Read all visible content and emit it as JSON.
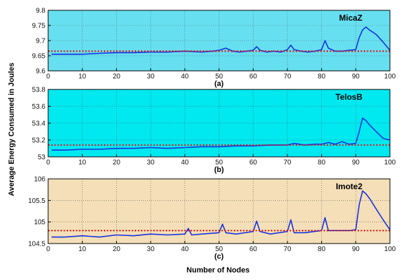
{
  "figure": {
    "ylabel": "Average Energy Consumed in Joules",
    "xlabel": "Number of Nodes"
  },
  "chart_data": [
    {
      "type": "line",
      "device": "MicaZ",
      "caption": "(a)",
      "background": "#66e0f0",
      "grid": true,
      "xlim": [
        0,
        100
      ],
      "ylim": [
        9.6,
        9.8
      ],
      "xticks": [
        0,
        10,
        20,
        30,
        40,
        50,
        60,
        70,
        80,
        90,
        100
      ],
      "yticks": [
        9.6,
        9.65,
        9.7,
        9.75,
        9.8
      ],
      "ytick_labels": [
        "9.6",
        "9.65",
        "9.7",
        "9.75",
        "9.8"
      ],
      "series": [
        {
          "color": "#1530e0",
          "style": "solid",
          "x": [
            1,
            5,
            10,
            15,
            20,
            25,
            30,
            35,
            40,
            45,
            48,
            50,
            52,
            54,
            56,
            58,
            60,
            61,
            62,
            64,
            66,
            68,
            70,
            71,
            72,
            74,
            76,
            78,
            80,
            81,
            82,
            84,
            86,
            88,
            90,
            91,
            92,
            93,
            94,
            96,
            98,
            100
          ],
          "y": [
            9.655,
            9.655,
            9.655,
            9.658,
            9.66,
            9.66,
            9.662,
            9.662,
            9.665,
            9.662,
            9.665,
            9.668,
            9.675,
            9.665,
            9.662,
            9.665,
            9.668,
            9.68,
            9.668,
            9.662,
            9.665,
            9.662,
            9.67,
            9.685,
            9.67,
            9.665,
            9.662,
            9.665,
            9.67,
            9.7,
            9.675,
            9.665,
            9.665,
            9.668,
            9.67,
            9.71,
            9.735,
            9.745,
            9.735,
            9.72,
            9.695,
            9.668
          ]
        },
        {
          "color": "#e01515",
          "style": "dotted",
          "x": [
            0,
            100
          ],
          "y": [
            9.665,
            9.665
          ]
        }
      ]
    },
    {
      "type": "line",
      "device": "TelosB",
      "caption": "(b)",
      "background": "#00e8f0",
      "grid": true,
      "xlim": [
        0,
        100
      ],
      "ylim": [
        53.0,
        53.8
      ],
      "xticks": [
        0,
        10,
        20,
        30,
        40,
        50,
        60,
        70,
        80,
        90,
        100
      ],
      "yticks": [
        53.0,
        53.2,
        53.4,
        53.6,
        53.8
      ],
      "ytick_labels": [
        "53",
        "53.2",
        "53.4",
        "53.6",
        "53.8"
      ],
      "series": [
        {
          "color": "#1530e0",
          "style": "solid",
          "x": [
            1,
            5,
            10,
            15,
            20,
            25,
            30,
            35,
            40,
            45,
            50,
            55,
            60,
            65,
            70,
            72,
            75,
            78,
            80,
            82,
            84,
            86,
            88,
            90,
            91,
            92,
            93,
            94,
            96,
            98,
            100
          ],
          "y": [
            53.08,
            53.08,
            53.09,
            53.09,
            53.1,
            53.1,
            53.11,
            53.1,
            53.11,
            53.12,
            53.12,
            53.13,
            53.13,
            53.14,
            53.14,
            53.16,
            53.14,
            53.15,
            53.15,
            53.17,
            53.15,
            53.18,
            53.15,
            53.16,
            53.3,
            53.46,
            53.43,
            53.38,
            53.3,
            53.22,
            53.2
          ]
        },
        {
          "color": "#e01515",
          "style": "dotted",
          "x": [
            0,
            100
          ],
          "y": [
            53.14,
            53.14
          ]
        }
      ]
    },
    {
      "type": "line",
      "device": "Imote2",
      "caption": "(c)",
      "background": "#f5dfb8",
      "grid": true,
      "xlim": [
        0,
        100
      ],
      "ylim": [
        104.5,
        106
      ],
      "xticks": [
        0,
        10,
        20,
        30,
        40,
        50,
        60,
        70,
        80,
        90,
        100
      ],
      "yticks": [
        104.5,
        105,
        105.5,
        106
      ],
      "ytick_labels": [
        "104.5",
        "105",
        "105.5",
        "106"
      ],
      "series": [
        {
          "color": "#1530e0",
          "style": "solid",
          "x": [
            1,
            5,
            10,
            15,
            20,
            25,
            30,
            35,
            40,
            41,
            42,
            45,
            50,
            51,
            52,
            55,
            60,
            61,
            62,
            65,
            70,
            71,
            72,
            75,
            80,
            81,
            82,
            85,
            88,
            90,
            91,
            92,
            93,
            94,
            96,
            98,
            100
          ],
          "y": [
            104.65,
            104.65,
            104.68,
            104.65,
            104.7,
            104.68,
            104.72,
            104.7,
            104.72,
            104.85,
            104.7,
            104.72,
            104.75,
            104.95,
            104.75,
            104.72,
            104.78,
            105.02,
            104.78,
            104.72,
            104.78,
            105.05,
            104.75,
            104.75,
            104.8,
            105.1,
            104.8,
            104.8,
            104.8,
            104.82,
            105.4,
            105.72,
            105.65,
            105.55,
            105.3,
            105.05,
            104.82
          ]
        },
        {
          "color": "#e01515",
          "style": "dotted",
          "x": [
            0,
            100
          ],
          "y": [
            104.8,
            104.8
          ]
        }
      ]
    }
  ]
}
